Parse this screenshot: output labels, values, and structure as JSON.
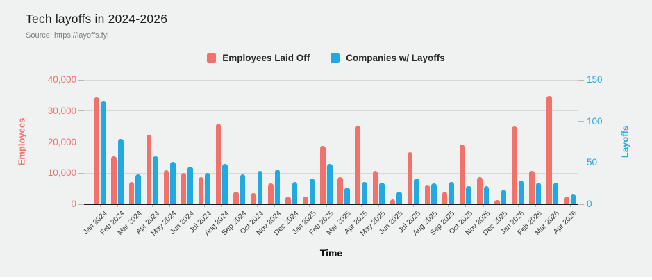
{
  "header": {
    "title": "Tech layoffs in 2024-2026",
    "source": "Source: https://layoffs.fyi"
  },
  "colors": {
    "employees": "#f0726a",
    "companies": "#21a9e1",
    "background": "#f0f1f1",
    "gridline": "#d8d8d8",
    "axis_line": "#1b1b1b"
  },
  "chart_data": {
    "type": "bar",
    "title": "Tech layoffs in 2024-2026",
    "xlabel": "Time",
    "legend_position": "top",
    "grid": true,
    "categories": [
      "Jan 2024",
      "Feb 2024",
      "Mar 2024",
      "Apr 2024",
      "May 2024",
      "Jun 2024",
      "Jul 2024",
      "Aug 2024",
      "Sep 2024",
      "Oct 2024",
      "Nov 2024",
      "Dec 2024",
      "Jan 2025",
      "Feb 2025",
      "Mar 2025",
      "Apr 2025",
      "May 2025",
      "Jun 2025",
      "Jul 2025",
      "Aug 2025",
      "Sep 2025",
      "Oct 2025",
      "Nov 2025",
      "Dec 2025",
      "Jan 2026",
      "Feb 2026",
      "Mar 2026",
      "Apr 2026"
    ],
    "series": [
      {
        "name": "Employees Laid Off",
        "axis": "left",
        "color": "#f0726a",
        "values": [
          34200,
          15200,
          6900,
          22100,
          10700,
          9800,
          8600,
          25700,
          3700,
          3300,
          6400,
          2300,
          2300,
          18500,
          8500,
          25100,
          10400,
          1300,
          16600,
          6100,
          3700,
          19000,
          8400,
          1100,
          24700,
          10600,
          34600,
          2200
        ]
      },
      {
        "name": "Companies w/ Layoffs",
        "axis": "right",
        "color": "#21a9e1",
        "values": [
          123,
          78,
          35,
          57,
          50,
          44,
          37,
          48,
          35,
          39,
          41,
          26,
          30,
          48,
          19,
          26,
          25,
          14,
          30,
          24,
          26,
          21,
          21,
          17,
          28,
          25,
          25,
          12
        ]
      }
    ],
    "left_axis": {
      "title": "Employees",
      "min": 0,
      "max": 40000,
      "tick_labels": [
        "0",
        "10,000",
        "20,000",
        "30,000",
        "40,000"
      ]
    },
    "right_axis": {
      "title": "Layoffs",
      "min": 0,
      "max": 150,
      "tick_labels": [
        "0",
        "50",
        "100",
        "150"
      ]
    }
  }
}
